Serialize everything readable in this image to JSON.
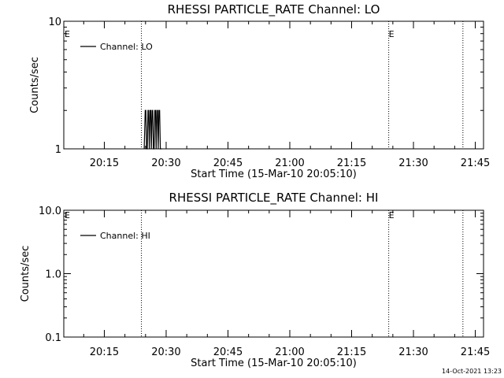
{
  "stamp": "14-Oct-2021 13:23",
  "chart_data": [
    {
      "type": "line",
      "title": "RHESSI PARTICLE_RATE Channel: LO",
      "xlabel": "Start Time (15-Mar-10 20:05:10)",
      "ylabel": "Counts/sec",
      "yscale": "log",
      "ylim": [
        1,
        10
      ],
      "xlim": [
        "20:05:10",
        "21:47:00"
      ],
      "y_ticks": [
        "1",
        "10"
      ],
      "x_ticks": [
        "20:15",
        "20:30",
        "20:45",
        "21:00",
        "21:15",
        "21:30",
        "21:45"
      ],
      "legend": "Channel: LO",
      "legend_position": "top-left",
      "event_lines": [
        "20:24:00",
        "21:24:00",
        "21:42:00"
      ],
      "event_markers": [
        {
          "time": "20:05:10",
          "label": "E"
        },
        {
          "time": "21:24:00",
          "label": "E"
        }
      ],
      "series": [
        {
          "x": [
            "20:24:40",
            "20:24:55",
            "20:25:05",
            "20:25:15",
            "20:25:25",
            "20:25:35",
            "20:25:45",
            "20:25:55",
            "20:26:05",
            "20:26:15",
            "20:26:25",
            "20:26:35",
            "20:26:45",
            "20:26:55",
            "20:27:05",
            "20:27:15",
            "20:27:25",
            "20:27:35",
            "20:27:45",
            "20:27:55",
            "20:28:05",
            "20:28:15",
            "20:28:25",
            "20:28:35",
            "20:28:45",
            "20:28:55"
          ],
          "y": [
            1,
            2,
            2,
            1,
            1,
            2,
            2,
            1,
            2,
            2,
            1,
            2,
            2,
            1,
            1,
            2,
            2,
            1,
            2,
            2,
            1,
            2,
            2,
            1,
            1,
            1
          ]
        }
      ]
    },
    {
      "type": "line",
      "title": "RHESSI PARTICLE_RATE Channel: HI",
      "xlabel": "Start Time (15-Mar-10 20:05:10)",
      "ylabel": "Counts/sec",
      "yscale": "log",
      "ylim": [
        0.1,
        10
      ],
      "xlim": [
        "20:05:10",
        "21:47:00"
      ],
      "y_ticks": [
        "0.1",
        "1.0",
        "10.0"
      ],
      "x_ticks": [
        "20:15",
        "20:30",
        "20:45",
        "21:00",
        "21:15",
        "21:30",
        "21:45"
      ],
      "legend": "Channel: HI",
      "legend_position": "top-left",
      "event_lines": [
        "20:24:00",
        "21:24:00",
        "21:42:00"
      ],
      "event_markers": [
        {
          "time": "20:05:10",
          "label": "E"
        },
        {
          "time": "21:24:00",
          "label": "E"
        }
      ],
      "series": []
    }
  ]
}
